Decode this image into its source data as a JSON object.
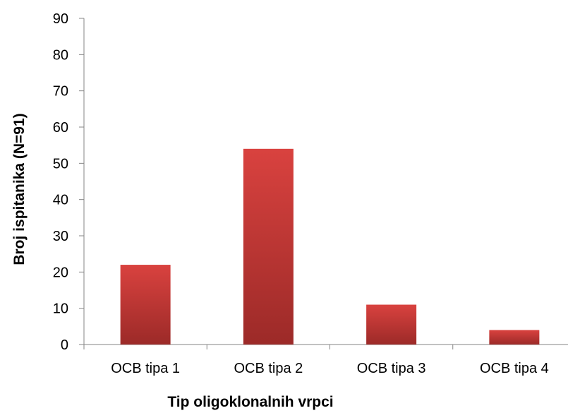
{
  "chart_data": {
    "type": "bar",
    "title": "",
    "xlabel": "Tip oligoklonalnih vrpci",
    "ylabel": "Broj ispitanika (N=91)",
    "categories": [
      "OCB tipa 1",
      "OCB tipa 2",
      "OCB tipa 3",
      "OCB tipa 4"
    ],
    "values": [
      22,
      54,
      11,
      4
    ],
    "ylim": [
      0,
      90
    ],
    "yticks": [
      0,
      10,
      20,
      30,
      40,
      50,
      60,
      70,
      80,
      90
    ],
    "grid": false,
    "legend": "none",
    "colors": {
      "bar_top": "#d9423f",
      "bar_bottom": "#9c2a28",
      "axis": "#868686",
      "text": "#000000"
    }
  }
}
